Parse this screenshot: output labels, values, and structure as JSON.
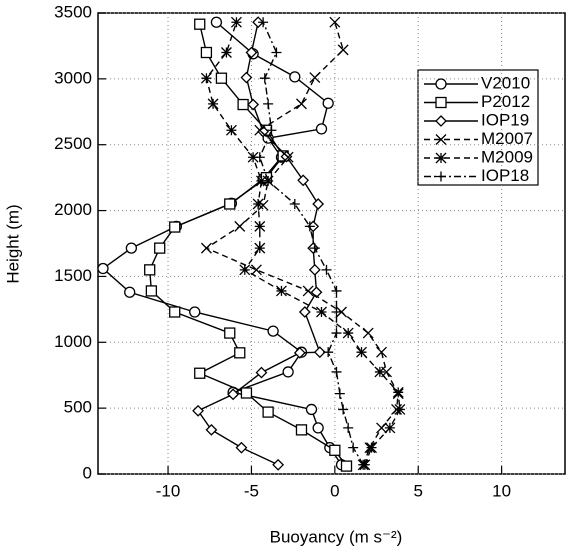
{
  "chart_data": {
    "type": "line",
    "x_label": "Buoyancy (m s⁻²)",
    "y_label": "Height (m)",
    "xlim": [
      -14.2,
      13.8
    ],
    "ylim": [
      0,
      3500
    ],
    "xticks": [
      -10,
      -5,
      0,
      5,
      10
    ],
    "yticks": [
      0,
      500,
      1000,
      1500,
      2000,
      2500,
      3000,
      3500
    ],
    "grid": true,
    "legend": "upper right",
    "series": [
      {
        "name": "V2010",
        "color": "#000000",
        "marker": "circle",
        "linestyle": "solid",
        "x": [
          0.4,
          -0.3,
          -1.0,
          -1.4,
          -6.1,
          -2.8,
          -2.0,
          -3.7,
          -8.4,
          -12.3,
          -13.9,
          -12.2,
          -9.5,
          -6.2,
          -4.3,
          -3.2,
          -4.0,
          -0.8,
          -0.4,
          -2.4,
          -4.9,
          -7.1
        ],
        "values": [
          70,
          200,
          350,
          490,
          620,
          775,
          925,
          1085,
          1230,
          1380,
          1560,
          1715,
          1880,
          2055,
          2240,
          2405,
          2550,
          2620,
          2815,
          3015,
          3190,
          3430
        ]
      },
      {
        "name": "P2012",
        "color": "#000000",
        "marker": "square",
        "linestyle": "solid",
        "x": [
          0.7,
          0.0,
          -2.0,
          -4.0,
          -5.3,
          -8.1,
          -5.7,
          -6.3,
          -9.6,
          -11.0,
          -11.1,
          -10.5,
          -9.6,
          -6.3,
          -4.1,
          -3.1,
          -4.1,
          -5.5,
          -6.8,
          -7.7,
          -8.1
        ],
        "values": [
          60,
          180,
          335,
          470,
          615,
          765,
          920,
          1070,
          1230,
          1390,
          1550,
          1715,
          1875,
          2050,
          2250,
          2415,
          2610,
          2805,
          3005,
          3200,
          3415
        ]
      },
      {
        "name": "IOP19",
        "color": "#000000",
        "marker": "diamond",
        "linestyle": "solid",
        "x": [
          -3.4,
          -5.6,
          -7.4,
          -8.2,
          -6.1,
          -4.4,
          -2.1,
          -0.9,
          -1.8,
          -1.1,
          -1.2,
          -1.3,
          -1.3,
          -1.0,
          -1.9,
          -2.9,
          -4.3,
          -4.9,
          -5.3,
          -5.0,
          -4.6
        ],
        "values": [
          70,
          200,
          335,
          480,
          605,
          770,
          920,
          925,
          1230,
          1380,
          1550,
          1715,
          1880,
          2050,
          2230,
          2410,
          2600,
          2805,
          3010,
          3200,
          3430
        ]
      },
      {
        "name": "M2007",
        "color": "#000000",
        "marker": "x",
        "linestyle": "dashed",
        "x": [
          1.7,
          2.1,
          2.8,
          3.7,
          3.8,
          3.1,
          2.8,
          2.0,
          0.4,
          -1.6,
          -4.7,
          -7.7,
          -5.7,
          -4.3,
          -4.0,
          -2.8,
          -4.5,
          -2.0,
          -1.2,
          0.5,
          0.0
        ],
        "values": [
          70,
          200,
          350,
          490,
          610,
          775,
          925,
          1070,
          1230,
          1390,
          1550,
          1715,
          1880,
          2040,
          2225,
          2405,
          2610,
          2810,
          3010,
          3220,
          3430
        ]
      },
      {
        "name": "M2009",
        "color": "#000000",
        "marker": "asterisk",
        "linestyle": "dashed",
        "x": [
          1.8,
          2.2,
          3.3,
          3.9,
          3.8,
          2.7,
          1.6,
          0.8,
          -0.8,
          -3.2,
          -5.4,
          -4.5,
          -4.5,
          -4.6,
          -4.4,
          -4.9,
          -6.2,
          -7.3,
          -7.7,
          -6.5,
          -5.9
        ],
        "values": [
          70,
          200,
          350,
          490,
          620,
          775,
          925,
          1070,
          1230,
          1390,
          1550,
          1715,
          1880,
          2050,
          2225,
          2405,
          2610,
          2810,
          3005,
          3200,
          3430
        ]
      },
      {
        "name": "IOP18",
        "color": "#000000",
        "marker": "plus",
        "linestyle": "dashdot",
        "x": [
          1.7,
          1.1,
          0.8,
          0.5,
          0.3,
          0.1,
          -0.4,
          0.1,
          0.1,
          0.1,
          -0.5,
          -1.2,
          -1.5,
          -2.4,
          -4.0,
          -4.5,
          -3.8,
          -4.0,
          -4.2,
          -3.5,
          -4.3
        ],
        "values": [
          70,
          200,
          350,
          490,
          610,
          775,
          925,
          1070,
          1230,
          1390,
          1550,
          1715,
          1880,
          2050,
          2225,
          2405,
          2610,
          2810,
          3005,
          3200,
          3430
        ]
      }
    ]
  }
}
